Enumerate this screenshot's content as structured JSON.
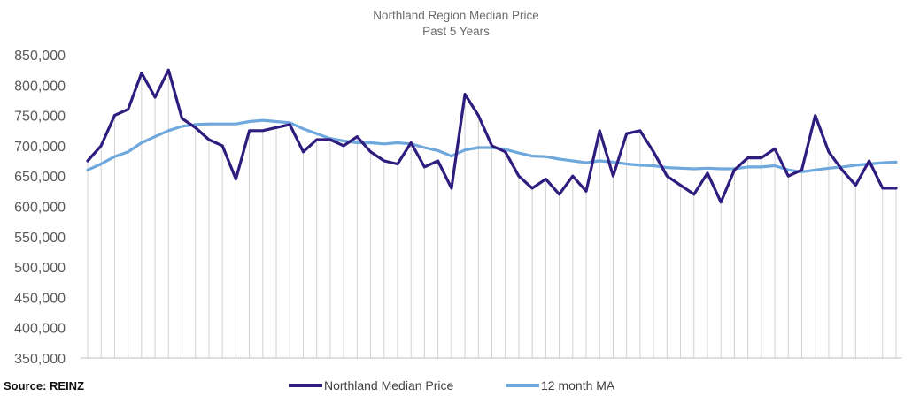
{
  "source_label": "Source: REINZ",
  "colors": {
    "median_series": "#2f1c7e",
    "ma_series": "#6fa8dc",
    "drop_lines": "#d0d0d0",
    "baseline": "#bfbfbf",
    "title_text": "#6b6b6b",
    "axis_text": "#595959"
  },
  "chart_data": {
    "type": "line",
    "title": "Northland Region Median Price",
    "subtitle": "Past 5 Years",
    "xlabel": "",
    "ylabel": "",
    "ylim": [
      350000,
      850000
    ],
    "yticks": [
      350000,
      400000,
      450000,
      500000,
      550000,
      600000,
      650000,
      700000,
      750000,
      800000,
      850000
    ],
    "ytick_labels": [
      "350,000",
      "400,000",
      "450,000",
      "500,000",
      "550,000",
      "600,000",
      "650,000",
      "700,000",
      "750,000",
      "800,000",
      "850,000"
    ],
    "x": [
      1,
      2,
      3,
      4,
      5,
      6,
      7,
      8,
      9,
      10,
      11,
      12,
      13,
      14,
      15,
      16,
      17,
      18,
      19,
      20,
      21,
      22,
      23,
      24,
      25,
      26,
      27,
      28,
      29,
      30,
      31,
      32,
      33,
      34,
      35,
      36,
      37,
      38,
      39,
      40,
      41,
      42,
      43,
      44,
      45,
      46,
      47,
      48,
      49,
      50,
      51,
      52,
      53,
      54,
      55,
      56,
      57,
      58,
      59,
      60,
      61
    ],
    "grid": false,
    "drop_lines": true,
    "legend_position": "bottom",
    "series": [
      {
        "name": "Northland Median Price",
        "values": [
          675000,
          700000,
          750000,
          760000,
          820000,
          780000,
          825000,
          745000,
          730000,
          710000,
          700000,
          645000,
          725000,
          725000,
          730000,
          735000,
          690000,
          710000,
          710000,
          700000,
          715000,
          690000,
          675000,
          670000,
          705000,
          665000,
          675000,
          630000,
          785000,
          750000,
          700000,
          690000,
          650000,
          630000,
          645000,
          620000,
          650000,
          625000,
          725000,
          650000,
          720000,
          725000,
          690000,
          650000,
          635000,
          620000,
          655000,
          607000,
          660000,
          680000,
          680000,
          695000,
          650000,
          660000,
          750000,
          690000,
          660000,
          635000,
          675000,
          630000,
          630000
        ]
      },
      {
        "name": "12 month MA",
        "values": [
          660000,
          670000,
          682000,
          690000,
          705000,
          715000,
          725000,
          732000,
          735000,
          736000,
          736000,
          736000,
          740000,
          742000,
          740000,
          738000,
          728000,
          720000,
          712000,
          708000,
          705000,
          705000,
          703000,
          705000,
          703000,
          697000,
          692000,
          683000,
          693000,
          697000,
          697000,
          694000,
          688000,
          683000,
          682000,
          678000,
          675000,
          672000,
          675000,
          673000,
          670000,
          668000,
          667000,
          664000,
          663000,
          662000,
          663000,
          662000,
          662000,
          665000,
          665000,
          667000,
          660000,
          657000,
          660000,
          663000,
          665000,
          668000,
          670000,
          672000,
          673000
        ]
      }
    ]
  }
}
